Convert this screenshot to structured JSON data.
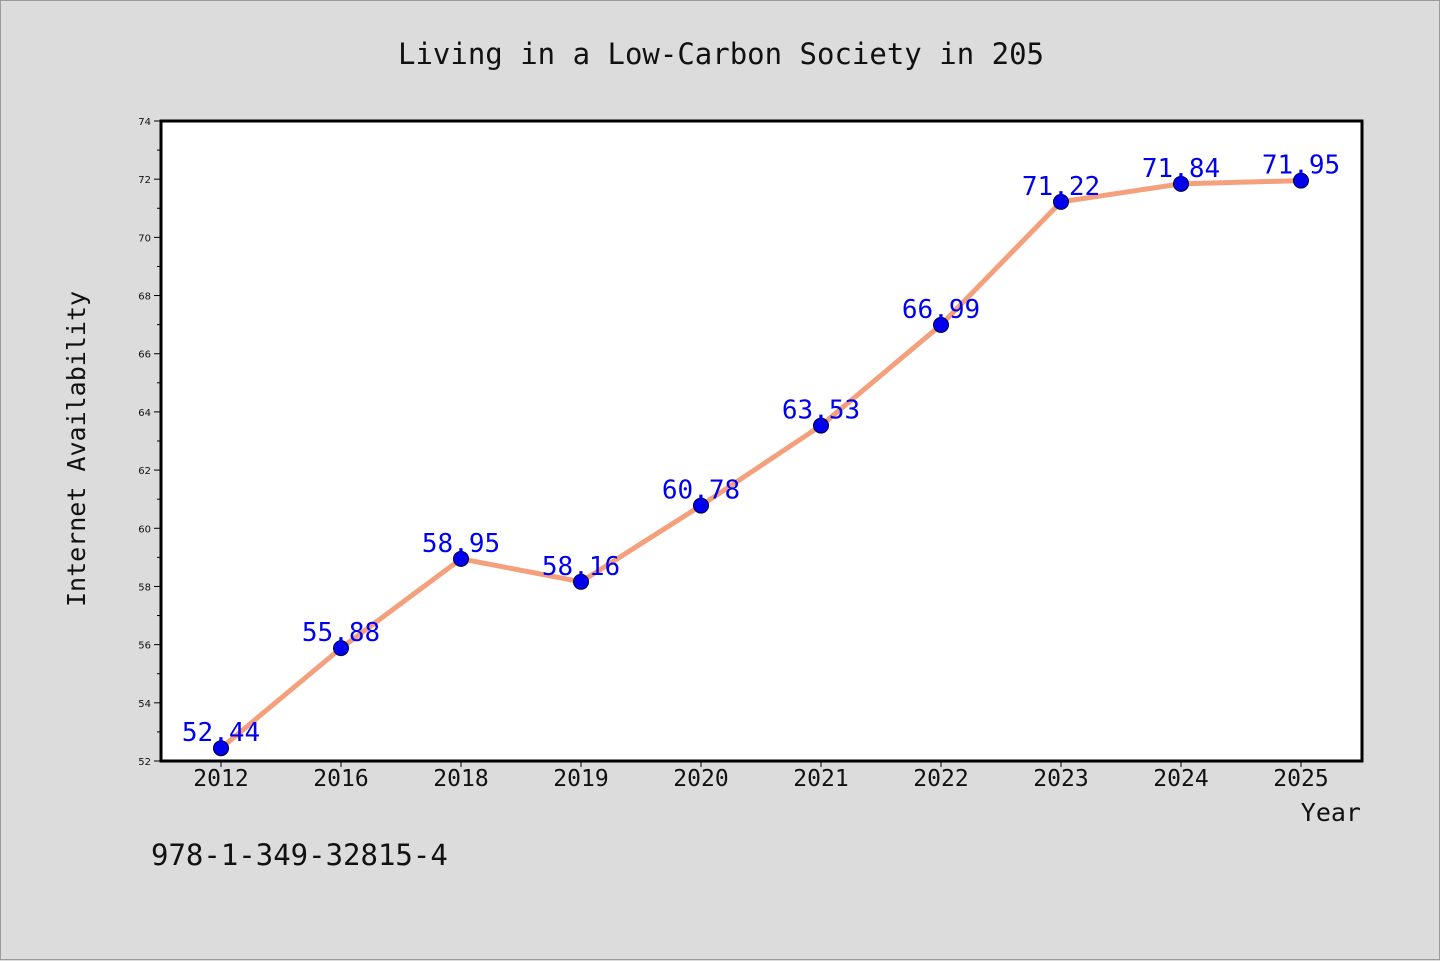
{
  "chart_data": {
    "type": "line",
    "title": "Living in a Low-Carbon Society in 205",
    "xlabel": "Year",
    "ylabel": "Internet Availability",
    "categories": [
      "2012",
      "2016",
      "2018",
      "2019",
      "2020",
      "2021",
      "2022",
      "2023",
      "2024",
      "2025"
    ],
    "values": [
      52.44,
      55.88,
      58.95,
      58.16,
      60.78,
      63.53,
      66.99,
      71.22,
      71.84,
      71.95
    ],
    "data_labels": [
      "52.44",
      "55.88",
      "58.95",
      "58.16",
      "60.78",
      "63.53",
      "66.99",
      "71.22",
      "71.84",
      "71.95"
    ],
    "ylim": [
      52,
      74
    ],
    "y_ticks": [
      "52",
      "54",
      "56",
      "58",
      "60",
      "62",
      "64",
      "66",
      "68",
      "70",
      "72",
      "74"
    ],
    "grid": false,
    "legend": "none",
    "line_color": "#f4a07c",
    "marker_color": "#0000ee",
    "label_color": "#0000ee",
    "background_color": "#dcdcdc",
    "plot_background": "#ffffff"
  },
  "footer": {
    "isbn": "978-1-349-32815-4"
  }
}
